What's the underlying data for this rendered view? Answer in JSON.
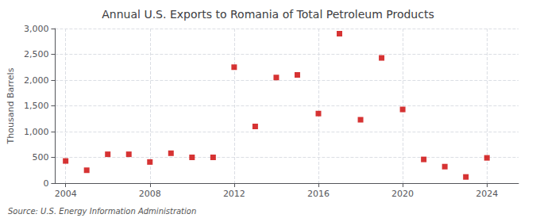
{
  "chart_data": {
    "type": "scatter",
    "title": "Annual U.S. Exports to Romania of Total Petroleum Products",
    "ylabel": "Thousand Barrels",
    "annotations": [
      "Source: U.S. Energy Information Administration"
    ],
    "x": [
      2004,
      2005,
      2006,
      2007,
      2008,
      2009,
      2010,
      2011,
      2012,
      2013,
      2014,
      2015,
      2016,
      2017,
      2018,
      2019,
      2020,
      2021,
      2022,
      2023,
      2024
    ],
    "values": [
      430,
      250,
      560,
      560,
      410,
      580,
      500,
      500,
      2250,
      1100,
      2050,
      2100,
      1350,
      2900,
      1230,
      2430,
      1430,
      460,
      320,
      120,
      490
    ],
    "color": "#cc0000",
    "marker": "square",
    "xlim": [
      2003.5,
      2025.5
    ],
    "xticks": [
      2004,
      2008,
      2012,
      2016,
      2020,
      2024
    ],
    "ylim": [
      0,
      3000
    ],
    "yticks": [
      0,
      500,
      {
        "value": 1000,
        "label": "1,000"
      },
      {
        "value": 1500,
        "label": "1,500"
      },
      {
        "value": 2000,
        "label": "2,000"
      },
      {
        "value": 2500,
        "label": "2,500"
      },
      {
        "value": 3000,
        "label": "3,000"
      }
    ],
    "grid": true
  }
}
